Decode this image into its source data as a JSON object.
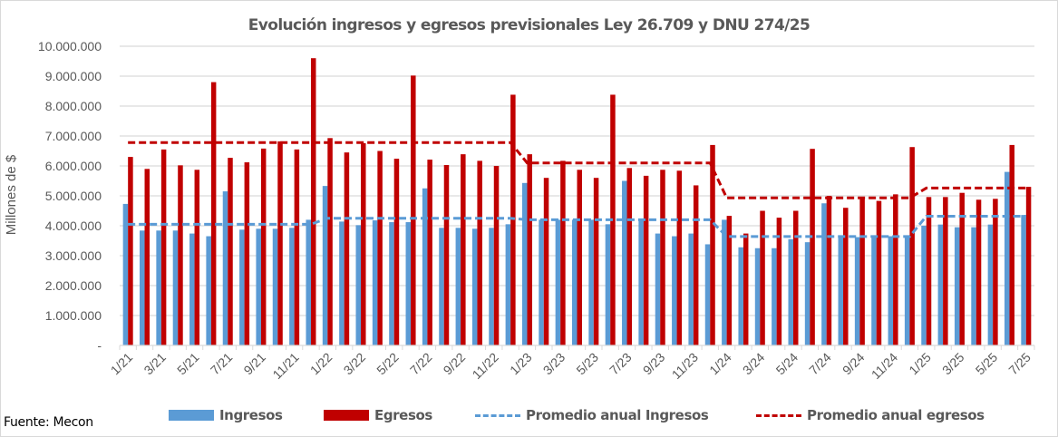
{
  "chart_data": {
    "type": "bar",
    "title": "Evolución ingresos y egresos previsionales Ley 26.709 y DNU 274/25",
    "xlabel": "",
    "ylabel": "Millones de $",
    "ylim": [
      0,
      10000000
    ],
    "y_ticks": [
      0,
      1000000,
      2000000,
      3000000,
      4000000,
      5000000,
      6000000,
      7000000,
      8000000,
      9000000,
      10000000
    ],
    "y_tick_labels": [
      "-",
      "1.000.000",
      "2.000.000",
      "3.000.000",
      "4.000.000",
      "5.000.000",
      "6.000.000",
      "7.000.000",
      "8.000.000",
      "9.000.000",
      "10.000.000"
    ],
    "grid": true,
    "legend_position": "bottom",
    "categories": [
      "1/21",
      "2/21",
      "3/21",
      "4/21",
      "5/21",
      "6/21",
      "7/21",
      "8/21",
      "9/21",
      "10/21",
      "11/21",
      "12/21",
      "1/22",
      "2/22",
      "3/22",
      "4/22",
      "5/22",
      "6/22",
      "7/22",
      "8/22",
      "9/22",
      "10/22",
      "11/22",
      "12/22",
      "1/23",
      "2/23",
      "3/23",
      "4/23",
      "5/23",
      "6/23",
      "7/23",
      "8/23",
      "9/23",
      "10/23",
      "11/23",
      "12/23",
      "1/24",
      "2/24",
      "3/24",
      "4/24",
      "5/24",
      "6/24",
      "7/24",
      "8/24",
      "9/24",
      "10/24",
      "11/24",
      "12/24",
      "1/25",
      "2/25",
      "3/25",
      "4/25",
      "5/25",
      "6/25",
      "7/25"
    ],
    "x_tick_labels": [
      "1/21",
      "3/21",
      "5/21",
      "7/21",
      "9/21",
      "11/21",
      "1/22",
      "3/22",
      "5/22",
      "7/22",
      "9/22",
      "11/22",
      "1/23",
      "3/23",
      "5/23",
      "7/23",
      "9/23",
      "11/23",
      "1/24",
      "3/24",
      "5/24",
      "7/24",
      "9/24",
      "11/24",
      "1/25",
      "3/25",
      "5/25",
      "7/25"
    ],
    "series": [
      {
        "name": "Ingresos",
        "type": "bar",
        "color": "#5b9bd5",
        "values": [
          4730000,
          3840000,
          3840000,
          3840000,
          3740000,
          3650000,
          5150000,
          3870000,
          3900000,
          3900000,
          3930000,
          4200000,
          5330000,
          4140000,
          4020000,
          4180000,
          4120000,
          4120000,
          5250000,
          3930000,
          3930000,
          3900000,
          3930000,
          4050000,
          5430000,
          4200000,
          4200000,
          4200000,
          4200000,
          4050000,
          5500000,
          4200000,
          3740000,
          3650000,
          3740000,
          3380000,
          4200000,
          3280000,
          3250000,
          3250000,
          3550000,
          3450000,
          4750000,
          3650000,
          3620000,
          3620000,
          3650000,
          3680000,
          4000000,
          4040000,
          3950000,
          3950000,
          4040000,
          5800000,
          4360000
        ]
      },
      {
        "name": "Egresos",
        "type": "bar",
        "color": "#c00000",
        "values": [
          6300000,
          5900000,
          6550000,
          6020000,
          5870000,
          8800000,
          6270000,
          6120000,
          6580000,
          6820000,
          6550000,
          9600000,
          6930000,
          6450000,
          6760000,
          6500000,
          6240000,
          9020000,
          6210000,
          6030000,
          6390000,
          6170000,
          6000000,
          8380000,
          6390000,
          5600000,
          6170000,
          5870000,
          5600000,
          8380000,
          5930000,
          5670000,
          5870000,
          5840000,
          5350000,
          6700000,
          4330000,
          3740000,
          4500000,
          4270000,
          4500000,
          6570000,
          5000000,
          4600000,
          4930000,
          4830000,
          5050000,
          6630000,
          4960000,
          4960000,
          5100000,
          4870000,
          4900000,
          6700000,
          5300000
        ]
      },
      {
        "name": "Promedio anual Ingresos",
        "type": "line",
        "style": "dashed",
        "color": "#5b9bd5",
        "values": [
          4050000,
          4050000,
          4050000,
          4050000,
          4050000,
          4050000,
          4050000,
          4050000,
          4050000,
          4050000,
          4050000,
          4050000,
          4250000,
          4250000,
          4250000,
          4250000,
          4250000,
          4250000,
          4250000,
          4250000,
          4250000,
          4250000,
          4250000,
          4250000,
          4200000,
          4200000,
          4200000,
          4200000,
          4200000,
          4200000,
          4200000,
          4200000,
          4200000,
          4200000,
          4200000,
          4200000,
          3640000,
          3640000,
          3640000,
          3640000,
          3640000,
          3640000,
          3640000,
          3640000,
          3640000,
          3640000,
          3640000,
          3640000,
          4320000,
          4320000,
          4320000,
          4320000,
          4320000,
          4320000,
          4320000
        ]
      },
      {
        "name": "Promedio anual egresos",
        "type": "line",
        "style": "dashed",
        "color": "#c00000",
        "values": [
          6780000,
          6780000,
          6780000,
          6780000,
          6780000,
          6780000,
          6780000,
          6780000,
          6780000,
          6780000,
          6780000,
          6780000,
          6780000,
          6780000,
          6780000,
          6780000,
          6780000,
          6780000,
          6780000,
          6780000,
          6780000,
          6780000,
          6780000,
          6780000,
          6100000,
          6100000,
          6100000,
          6100000,
          6100000,
          6100000,
          6100000,
          6100000,
          6100000,
          6100000,
          6100000,
          6100000,
          4930000,
          4930000,
          4930000,
          4930000,
          4930000,
          4930000,
          4930000,
          4930000,
          4930000,
          4930000,
          4930000,
          4930000,
          5260000,
          5260000,
          5260000,
          5260000,
          5260000,
          5260000,
          5260000
        ]
      }
    ],
    "legend": [
      "Ingresos",
      "Egresos",
      "Promedio anual Ingresos",
      "Promedio anual egresos"
    ]
  },
  "footer": {
    "source": "Fuente: Mecon"
  },
  "colors": {
    "ingresos": "#5b9bd5",
    "egresos": "#c00000",
    "grid": "#d9d9d9",
    "text": "#595959"
  }
}
